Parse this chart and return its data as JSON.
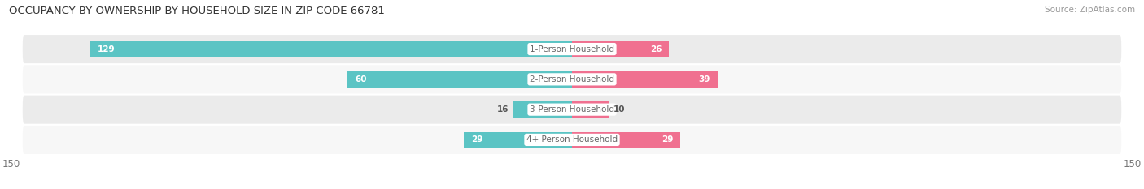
{
  "title": "OCCUPANCY BY OWNERSHIP BY HOUSEHOLD SIZE IN ZIP CODE 66781",
  "source": "Source: ZipAtlas.com",
  "categories": [
    "1-Person Household",
    "2-Person Household",
    "3-Person Household",
    "4+ Person Household"
  ],
  "owner_values": [
    129,
    60,
    16,
    29
  ],
  "renter_values": [
    26,
    39,
    10,
    29
  ],
  "owner_color": "#5bc4c4",
  "renter_color": "#f07090",
  "row_bg_color_odd": "#ebebeb",
  "row_bg_color_even": "#f7f7f7",
  "label_bg_color": "#ffffff",
  "max_val": 150,
  "title_fontsize": 9.5,
  "source_fontsize": 7.5,
  "bar_label_fontsize": 7.5,
  "category_fontsize": 7.5,
  "axis_label_fontsize": 8.5,
  "bar_value_color": "#555555",
  "category_label_color": "#666666"
}
